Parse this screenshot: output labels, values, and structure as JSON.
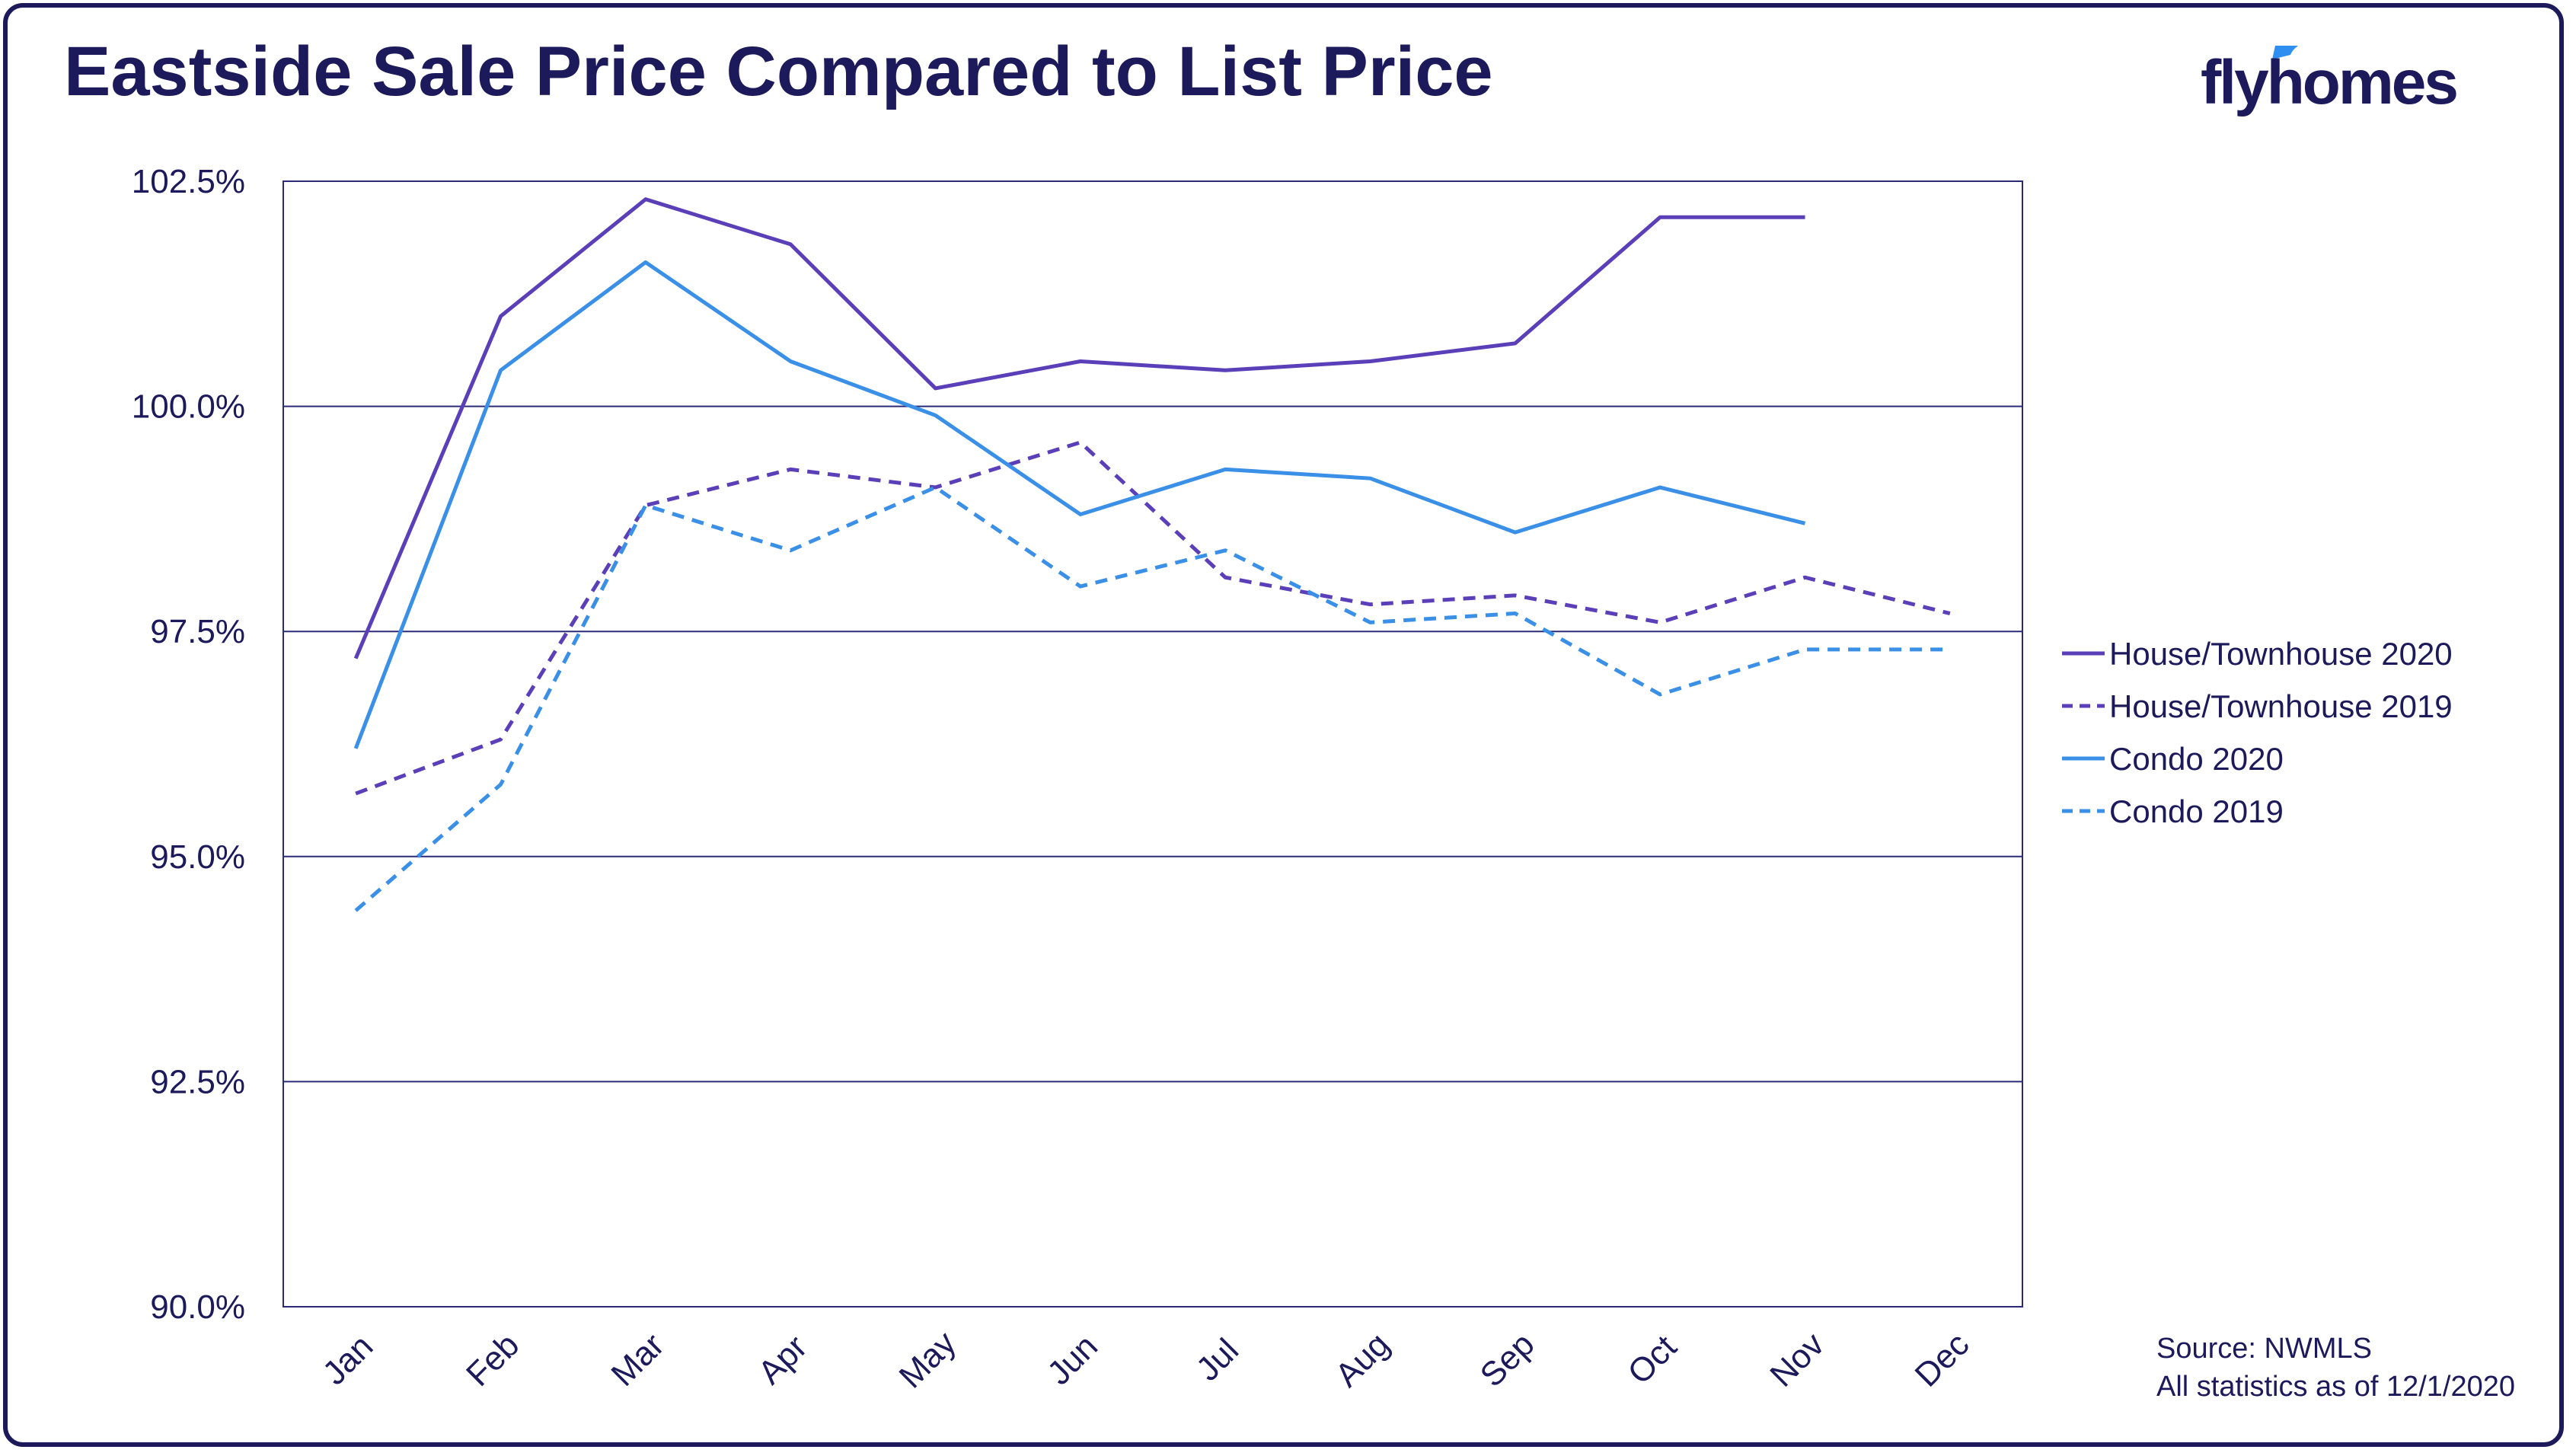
{
  "title": "Eastside Sale Price Compared to List Price",
  "logo": {
    "text": "flyhomes",
    "accent_color": "#2f8ff0"
  },
  "source": {
    "line1": "Source: NWMLS",
    "line2": "All statistics as of 12/1/2020"
  },
  "colors": {
    "house": "#5a3fb8",
    "condo": "#3a8fe6",
    "axis": "#1c1a5a",
    "grid": "#2b2a78"
  },
  "chart_data": {
    "type": "line",
    "categories": [
      "Jan",
      "Feb",
      "Mar",
      "Apr",
      "May",
      "Jun",
      "Jul",
      "Aug",
      "Sep",
      "Oct",
      "Nov",
      "Dec"
    ],
    "ylim": [
      90.0,
      102.5
    ],
    "yticks": [
      "102.5%",
      "100.0%",
      "97.5%",
      "95.0%",
      "92.5%",
      "90.0%"
    ],
    "ytick_values": [
      102.5,
      100.0,
      97.5,
      95.0,
      92.5,
      90.0
    ],
    "grid": true,
    "legend_position": "right",
    "series": [
      {
        "name": "House/Townhouse 2020",
        "color": "#5a3fb8",
        "dashed": false,
        "values": [
          97.2,
          101.0,
          102.3,
          101.8,
          100.2,
          100.5,
          100.4,
          100.5,
          100.7,
          102.1,
          102.1,
          null
        ]
      },
      {
        "name": "House/Townhouse 2019",
        "color": "#5a3fb8",
        "dashed": true,
        "values": [
          95.7,
          96.3,
          98.9,
          99.3,
          99.1,
          99.6,
          98.1,
          97.8,
          97.9,
          97.6,
          98.1,
          97.7
        ]
      },
      {
        "name": "Condo 2020",
        "color": "#3a8fe6",
        "dashed": false,
        "values": [
          96.2,
          100.4,
          101.6,
          100.5,
          99.9,
          98.8,
          99.3,
          99.2,
          98.6,
          99.1,
          98.7,
          null
        ]
      },
      {
        "name": "Condo 2019",
        "color": "#3a8fe6",
        "dashed": true,
        "values": [
          94.4,
          95.8,
          98.9,
          98.4,
          99.1,
          98.0,
          98.4,
          97.6,
          97.7,
          96.8,
          97.3,
          97.3
        ]
      }
    ]
  }
}
